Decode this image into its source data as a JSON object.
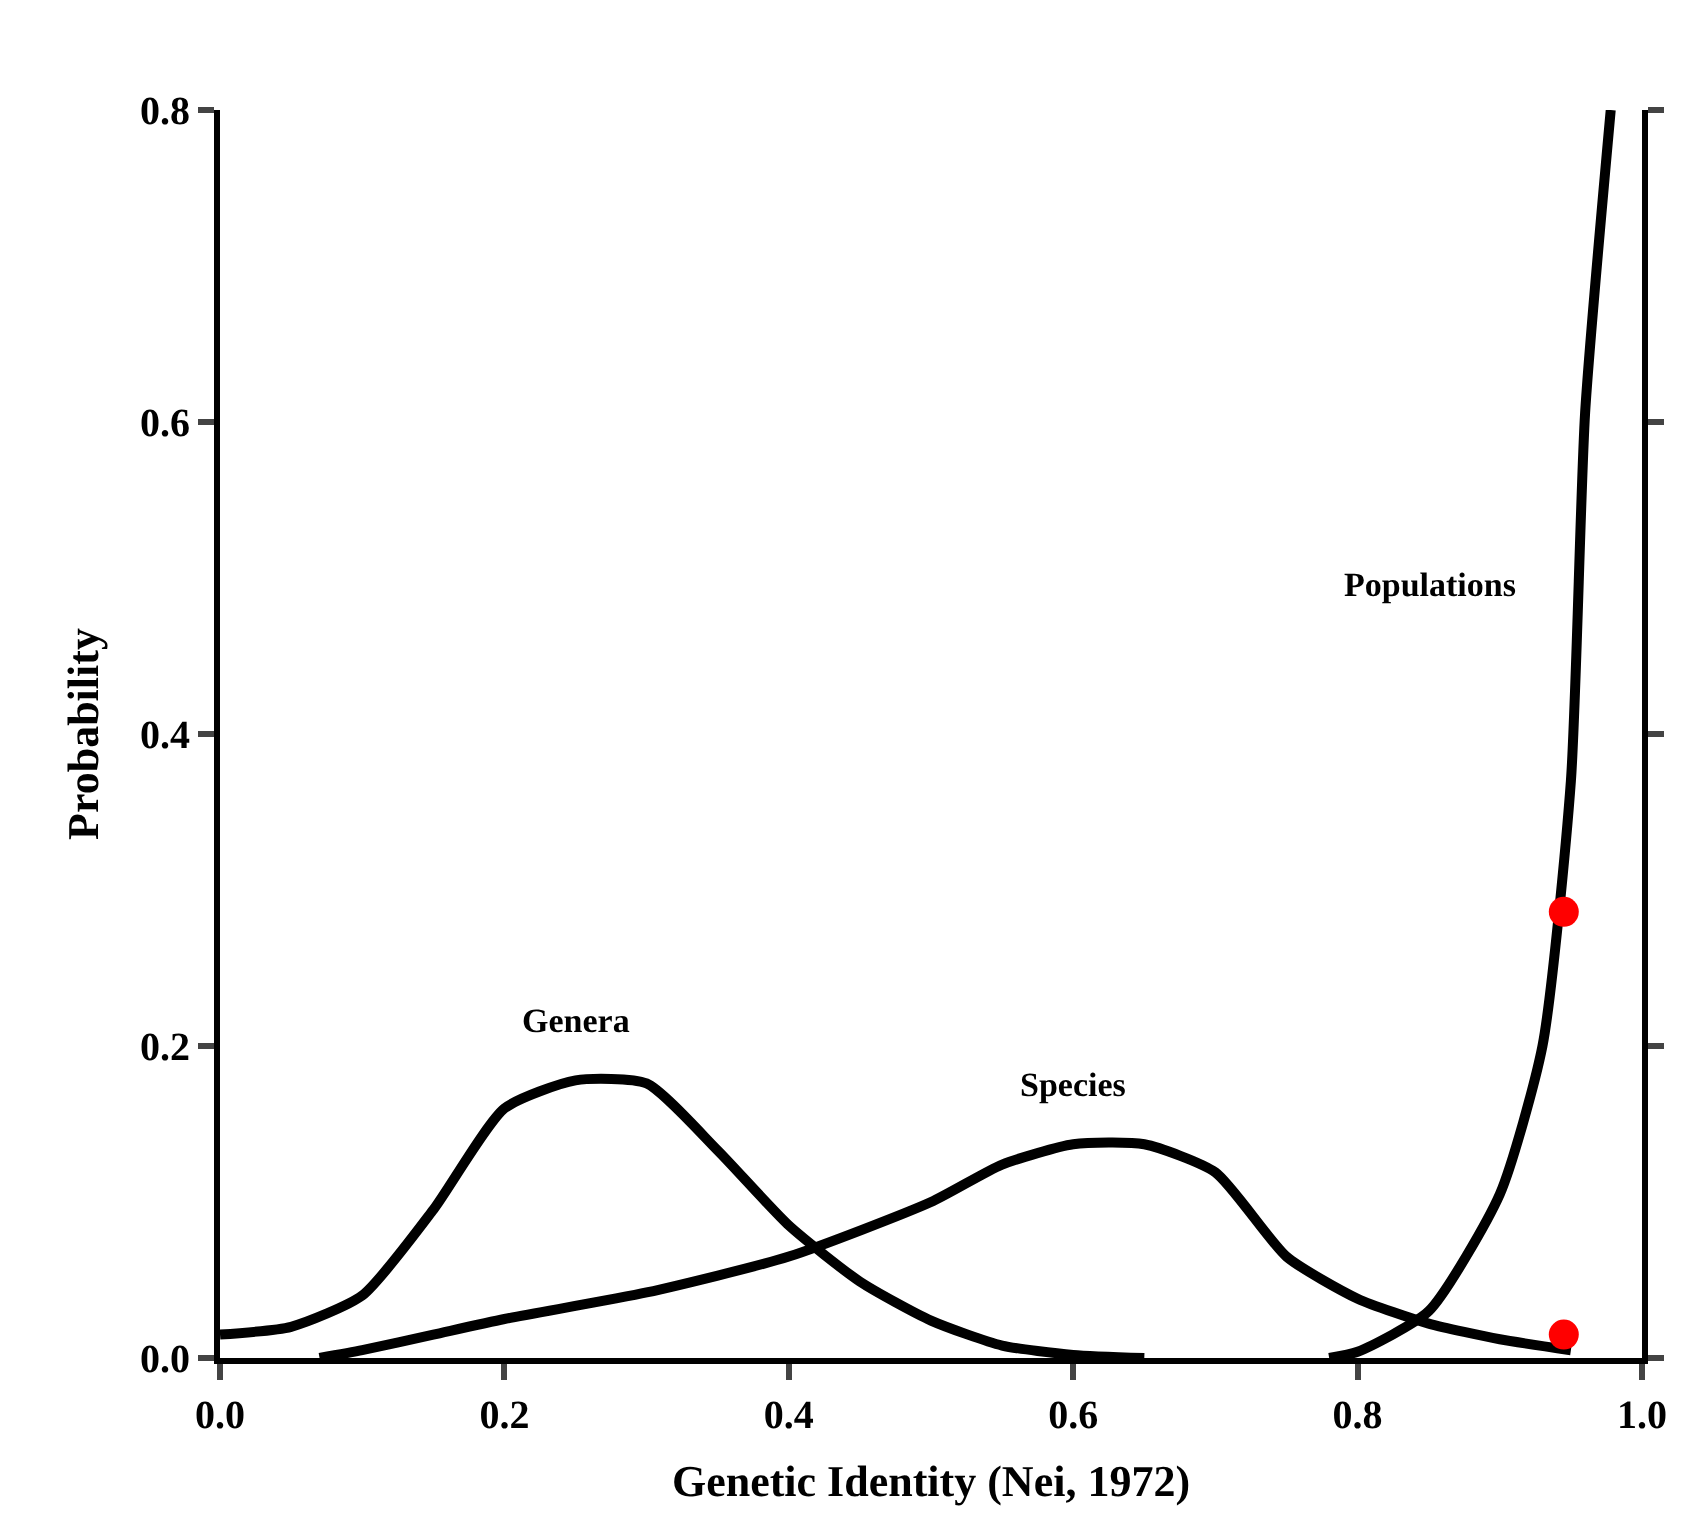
{
  "chart_data": {
    "type": "line",
    "xlabel": "Genetic Identity (Nei, 1972)",
    "ylabel": "Probability",
    "xlim": [
      0,
      1.0
    ],
    "xticks": [
      {
        "value": 0,
        "label": "0.0"
      },
      0.2,
      0.4,
      0.6,
      0.8,
      {
        "value": 1,
        "label": "1.0"
      }
    ],
    "ylim": [
      0,
      0.8
    ],
    "yticks": [
      {
        "value": 0,
        "label": "0.0"
      },
      0.2,
      0.4,
      0.6,
      0.8
    ],
    "legend": false,
    "marker": "none",
    "line_style": "solid",
    "series": [
      {
        "name": "Genera",
        "color": "#000000",
        "x": [
          0,
          0.05,
          0.1,
          0.15,
          0.2,
          0.25,
          0.3,
          0.35,
          0.4,
          0.45,
          0.5,
          0.55,
          0.6,
          0.65
        ],
        "values": [
          0.015,
          0.02,
          0.04,
          0.095,
          0.16,
          0.178,
          0.176,
          0.133,
          0.085,
          0.049,
          0.024,
          0.008,
          0.002,
          0
        ]
      },
      {
        "name": "Species",
        "color": "#000000",
        "x": [
          0.07,
          0.1,
          0.15,
          0.2,
          0.3,
          0.4,
          0.5,
          0.55,
          0.6,
          0.65,
          0.7,
          0.75,
          0.8,
          0.85,
          0.9,
          0.95
        ],
        "values": [
          0,
          0.005,
          0.015,
          0.025,
          0.042,
          0.065,
          0.1,
          0.124,
          0.137,
          0.137,
          0.119,
          0.065,
          0.038,
          0.022,
          0.012,
          0.005
        ]
      },
      {
        "name": "Populations",
        "color": "#000000",
        "x": [
          0.78,
          0.8,
          0.85,
          0.9,
          0.93,
          0.95,
          0.96,
          0.978
        ],
        "values": [
          0,
          0.004,
          0.03,
          0.105,
          0.2,
          0.37,
          0.606,
          0.8
        ]
      },
      {
        "type": "scatter",
        "marker": "circle",
        "color": "#ff0000",
        "x": [
          0.945,
          0.945
        ],
        "values": [
          0.286,
          0.015
        ]
      }
    ]
  }
}
